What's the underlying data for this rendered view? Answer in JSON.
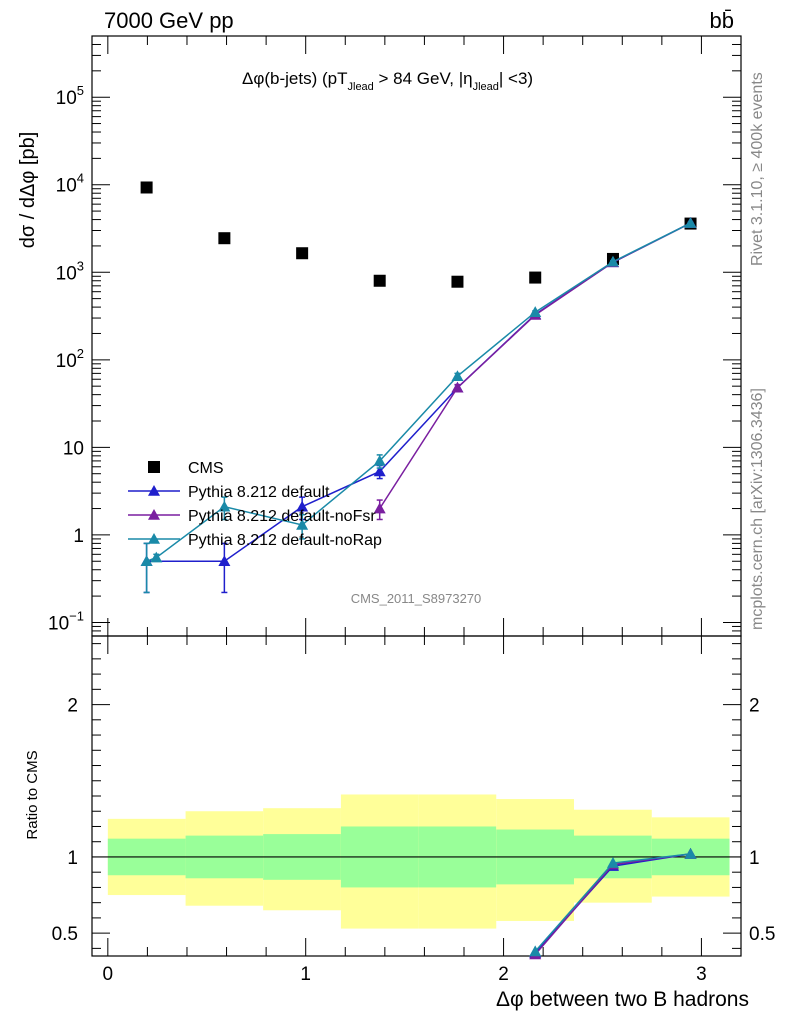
{
  "header": {
    "energy_label": "7000 GeV pp",
    "process_label": "bb̄"
  },
  "side_labels": {
    "top": "Rivet 3.1.10, ≥ 400k events",
    "bottom": "mcplots.cern.ch [arXiv:1306.3436]"
  },
  "watermark": "CMS_2011_S8973270",
  "main": {
    "title_parts": {
      "a": "Δφ(b-jets) (pT",
      "sub1": "Jlead",
      "b": " >  84 GeV, |η",
      "sub2": "Jlead",
      "c": "| <3)"
    },
    "ylabel": "dσ / dΔφ [pb]"
  },
  "ratio": {
    "ylabel": "Ratio to CMS"
  },
  "xlabel": "Δφ between two B hadrons",
  "colors": {
    "cms": "#000000",
    "default": "#1f1fcc",
    "noFsr": "#7a1fa0",
    "noRap": "#1a8aa8",
    "band_inner": "#99ff99",
    "band_outer": "#ffff99"
  },
  "chart_data": [
    {
      "type": "scatter",
      "name": "main",
      "y_scale": "log",
      "xlim": [
        -0.08,
        3.2
      ],
      "ylim": [
        0.07,
        500000
      ],
      "ylabel": "dσ / dΔφ [pb]",
      "x_ticks": [
        0,
        1,
        2,
        3
      ],
      "y_ticks": [
        {
          "value": 0.1,
          "base": "10",
          "exp": "−1"
        },
        {
          "value": 1,
          "label": "1"
        },
        {
          "value": 10,
          "label": "10"
        },
        {
          "value": 100,
          "base": "10",
          "exp": "2"
        },
        {
          "value": 1000,
          "base": "10",
          "exp": "3"
        },
        {
          "value": 10000,
          "base": "10",
          "exp": "4"
        },
        {
          "value": 100000,
          "base": "10",
          "exp": "5"
        }
      ],
      "legend_position": "lower-left",
      "series": [
        {
          "name": "CMS",
          "color": "#000000",
          "marker": "square",
          "x": [
            0.196,
            0.589,
            0.982,
            1.374,
            1.767,
            2.16,
            2.553,
            2.945
          ],
          "y": [
            9300,
            2450,
            1650,
            800,
            780,
            870,
            1420,
            3600
          ]
        },
        {
          "name": "Pythia 8.212 default",
          "color": "#1f1fcc",
          "marker": "triangle",
          "x": [
            0.196,
            0.589,
            0.982,
            1.374,
            1.767,
            2.16,
            2.553,
            2.945
          ],
          "y": [
            0.5,
            0.5,
            2.1,
            5.3,
            48,
            330,
            1300,
            3650
          ],
          "err_lo": [
            0.28,
            0.28,
            0.6,
            0.9,
            4,
            12,
            30,
            50
          ],
          "err_hi": [
            0.3,
            0.3,
            0.6,
            0.9,
            4,
            12,
            30,
            50
          ]
        },
        {
          "name": "Pythia 8.212 default-noFsr",
          "color": "#7a1fa0",
          "marker": "triangle",
          "x": [
            1.374,
            1.767,
            2.16,
            2.553,
            2.945
          ],
          "y": [
            2.0,
            48,
            325,
            1300,
            3650
          ],
          "err_lo": [
            0.5,
            4,
            12,
            30,
            50
          ],
          "err_hi": [
            0.5,
            4,
            12,
            30,
            50
          ]
        },
        {
          "name": "Pythia 8.212 default-noRap",
          "color": "#1a8aa8",
          "marker": "triangle",
          "x": [
            0.196,
            0.245,
            0.589,
            0.982,
            1.374,
            1.767,
            2.16,
            2.553,
            2.945
          ],
          "y": [
            0.5,
            0.55,
            2.1,
            1.3,
            7.0,
            65,
            350,
            1320,
            3650
          ],
          "err_lo": [
            0.28,
            0.05,
            0.6,
            0.4,
            1.2,
            5,
            12,
            30,
            50
          ],
          "err_hi": [
            0.3,
            0.05,
            0.6,
            0.4,
            1.2,
            5,
            12,
            30,
            50
          ]
        }
      ]
    },
    {
      "type": "line",
      "name": "ratio",
      "y_scale": "linear",
      "xlim": [
        -0.08,
        3.2
      ],
      "ylim": [
        0.35,
        2.45
      ],
      "ylabel": "Ratio to CMS",
      "xlabel": "Δφ between two B hadrons",
      "x_ticks": [
        0,
        1,
        2,
        3
      ],
      "y_ticks": [
        0.5,
        1,
        2
      ],
      "bands": {
        "edges": [
          0,
          0.393,
          0.785,
          1.178,
          1.571,
          1.963,
          2.356,
          2.749,
          3.142
        ],
        "inner_lo": [
          0.88,
          0.86,
          0.85,
          0.8,
          0.8,
          0.82,
          0.86,
          0.88
        ],
        "inner_hi": [
          1.12,
          1.14,
          1.15,
          1.2,
          1.2,
          1.18,
          1.14,
          1.12
        ],
        "outer_lo": [
          0.75,
          0.68,
          0.65,
          0.53,
          0.53,
          0.58,
          0.7,
          0.74
        ],
        "outer_hi": [
          1.25,
          1.3,
          1.32,
          1.41,
          1.41,
          1.38,
          1.31,
          1.26
        ]
      },
      "series": [
        {
          "name": "Pythia 8.212 default",
          "color": "#1f1fcc",
          "x": [
            2.16,
            2.553,
            2.945
          ],
          "y": [
            0.37,
            0.94,
            1.02
          ]
        },
        {
          "name": "Pythia 8.212 default-noFsr",
          "color": "#7a1fa0",
          "x": [
            2.16,
            2.553,
            2.945
          ],
          "y": [
            0.36,
            0.95,
            1.02
          ]
        },
        {
          "name": "Pythia 8.212 default-noRap",
          "color": "#1a8aa8",
          "x": [
            2.16,
            2.553,
            2.945
          ],
          "y": [
            0.38,
            0.96,
            1.02
          ]
        }
      ]
    }
  ]
}
